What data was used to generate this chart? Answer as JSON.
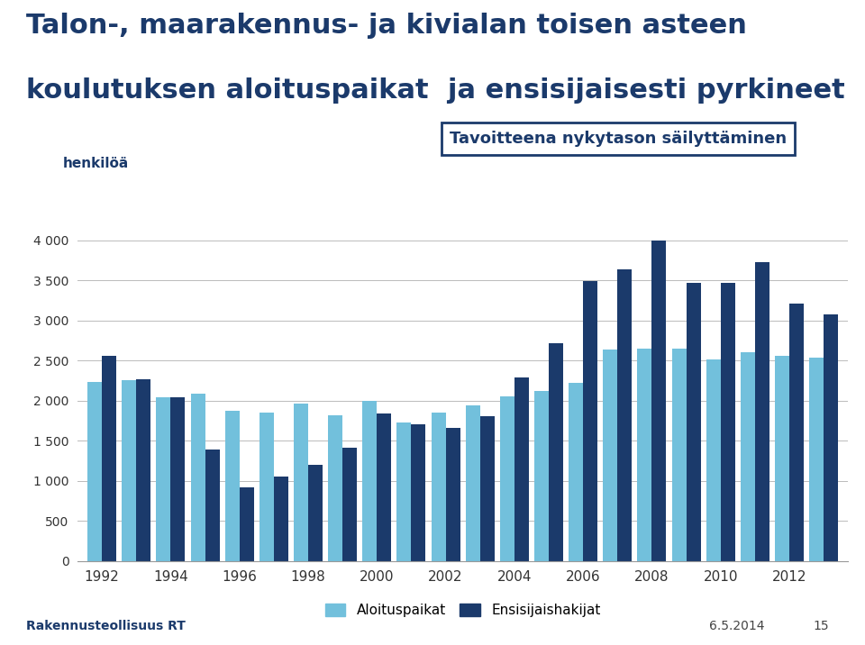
{
  "title_line1": "Talon-, maarakennus- ja kivialan toisen asteen",
  "title_line2": "koulutuksen aloituspaikat  ja ensisijaisesti pyrkineet",
  "ylabel": "henkilöä",
  "annotation_box": "Tavoitteena nykytason säilyttäminen",
  "years": [
    1992,
    1993,
    1994,
    1995,
    1996,
    1997,
    1998,
    1999,
    2000,
    2001,
    2002,
    2003,
    2004,
    2005,
    2006,
    2007,
    2008,
    2009,
    2010,
    2011,
    2012,
    2013
  ],
  "aloituspaikat": [
    2230,
    2260,
    2040,
    2090,
    1870,
    1850,
    1960,
    1820,
    2000,
    1730,
    1850,
    1940,
    2050,
    2120,
    2220,
    2640,
    2650,
    2650,
    2510,
    2600,
    2560,
    2530
  ],
  "ensisijaishakijat": [
    2560,
    2270,
    2040,
    1390,
    920,
    1050,
    1200,
    1410,
    1840,
    1700,
    1660,
    1810,
    2290,
    2710,
    3490,
    3640,
    4000,
    3470,
    3470,
    3720,
    3210,
    3070
  ],
  "color_aloituspaikat": "#72C0DC",
  "color_ensisijaishakijat": "#1B3A6B",
  "ylim": [
    0,
    4500
  ],
  "yticks": [
    0,
    500,
    1000,
    1500,
    2000,
    2500,
    3000,
    3500,
    4000
  ],
  "ytick_labels": [
    "0",
    "500",
    "1 000",
    "1 500",
    "2 000",
    "2 500",
    "3 000",
    "3 500",
    "4 000"
  ],
  "xtick_labels": [
    "1992",
    "1994",
    "1996",
    "1998",
    "2000",
    "2002",
    "2004",
    "2006",
    "2008",
    "2010",
    "2012"
  ],
  "legend_aloituspaikat": "Aloituspaikat",
  "legend_ensisijaishakijat": "Ensisijaishakijat",
  "footer_left": "Rakennusteollisuus RT",
  "footer_right": "6.5.2014",
  "footer_number": "15",
  "background_color": "#FFFFFF",
  "title_color": "#1B3A6B",
  "axis_label_color": "#1B3A6B",
  "grid_color": "#BBBBBB",
  "title_fontsize": 22,
  "annotation_fontsize": 13
}
